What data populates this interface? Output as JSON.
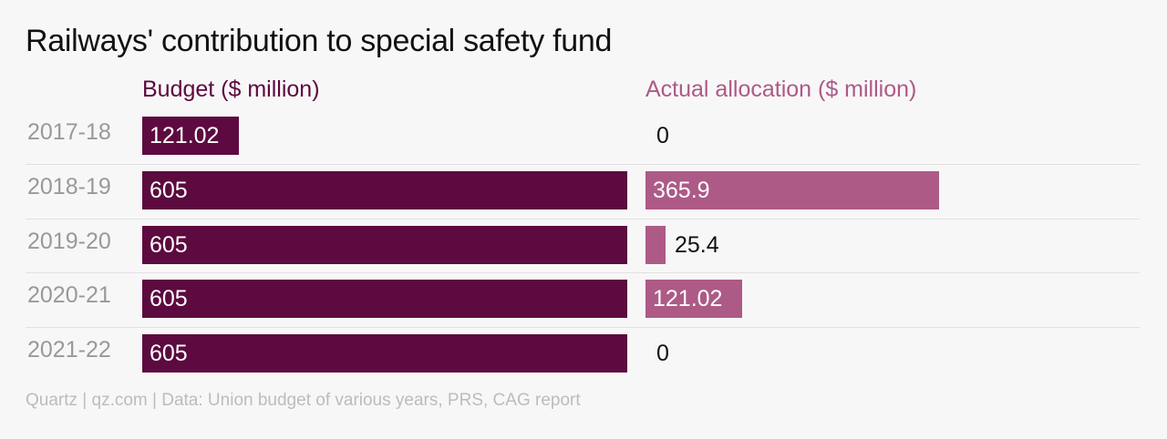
{
  "chart_data": {
    "type": "bar",
    "orientation": "horizontal",
    "title": "Railways' contribution to special safety fund",
    "categories": [
      "2017-18",
      "2018-19",
      "2019-20",
      "2020-21",
      "2021-22"
    ],
    "series": [
      {
        "name": "Budget ($ million)",
        "values": [
          121.02,
          605,
          605,
          605,
          605
        ],
        "labels": [
          "121.02",
          "605",
          "605",
          "605",
          "605"
        ],
        "color": "#5c0a3f"
      },
      {
        "name": "Actual allocation ($ million)",
        "values": [
          0,
          365.9,
          25.4,
          121.02,
          0
        ],
        "labels": [
          "0",
          "365.9",
          "25.4",
          "121.02",
          "0"
        ],
        "color": "#ad5a87"
      }
    ],
    "xlim": [
      0,
      605
    ],
    "grid": false,
    "legend": "top",
    "source": "Quartz | qz.com | Data: Union budget of various years, PRS, CAG report"
  }
}
